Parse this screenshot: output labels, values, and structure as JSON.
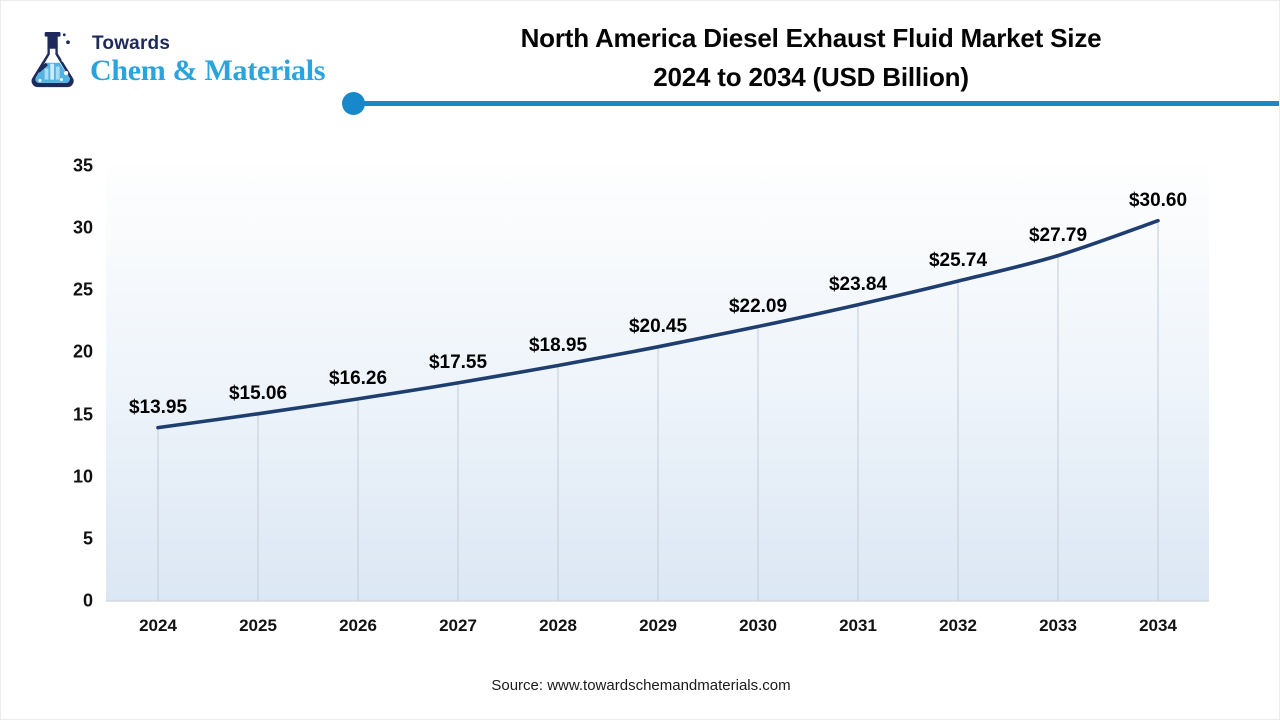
{
  "logo": {
    "top": "Towards",
    "bottom": "Chem & Materials",
    "icon": "flask-icon",
    "navy": "#1e2a5c",
    "blue": "#2aa4dc"
  },
  "title": {
    "line1": "North America Diesel Exhaust Fluid Market Size",
    "line2": "2024 to 2034 (USD Billion)"
  },
  "divider": {
    "color": "#1789cb"
  },
  "source": {
    "text": "Source: www.towardschemandmaterials.com"
  },
  "chart_data": {
    "type": "line",
    "title": "North America Diesel Exhaust Fluid Market Size 2024 to 2034 (USD Billion)",
    "categories": [
      "2024",
      "2025",
      "2026",
      "2027",
      "2028",
      "2029",
      "2030",
      "2031",
      "2032",
      "2033",
      "2034"
    ],
    "values": [
      13.95,
      15.06,
      16.26,
      17.55,
      18.95,
      20.45,
      22.09,
      23.84,
      25.74,
      27.79,
      30.6
    ],
    "point_labels": [
      "$13.95",
      "$15.06",
      "$16.26",
      "$17.55",
      "$18.95",
      "$20.45",
      "$22.09",
      "$23.84",
      "$25.74",
      "$27.79",
      "$30.60"
    ],
    "xlabel": "",
    "ylabel": "",
    "ylim": [
      0,
      35
    ],
    "ytick_labels": [
      "0",
      "5",
      "10",
      "15",
      "20",
      "25",
      "30",
      "35"
    ],
    "grid": "drop-lines-only",
    "legend": "none",
    "smooth": true,
    "line_color": "#1f3e70",
    "drop_line_color": "#c3cbd6",
    "plot_bg_top": "#fefefe",
    "plot_bg_mid": "#eef4fa",
    "plot_bg_bottom": "#dbe7f4"
  }
}
